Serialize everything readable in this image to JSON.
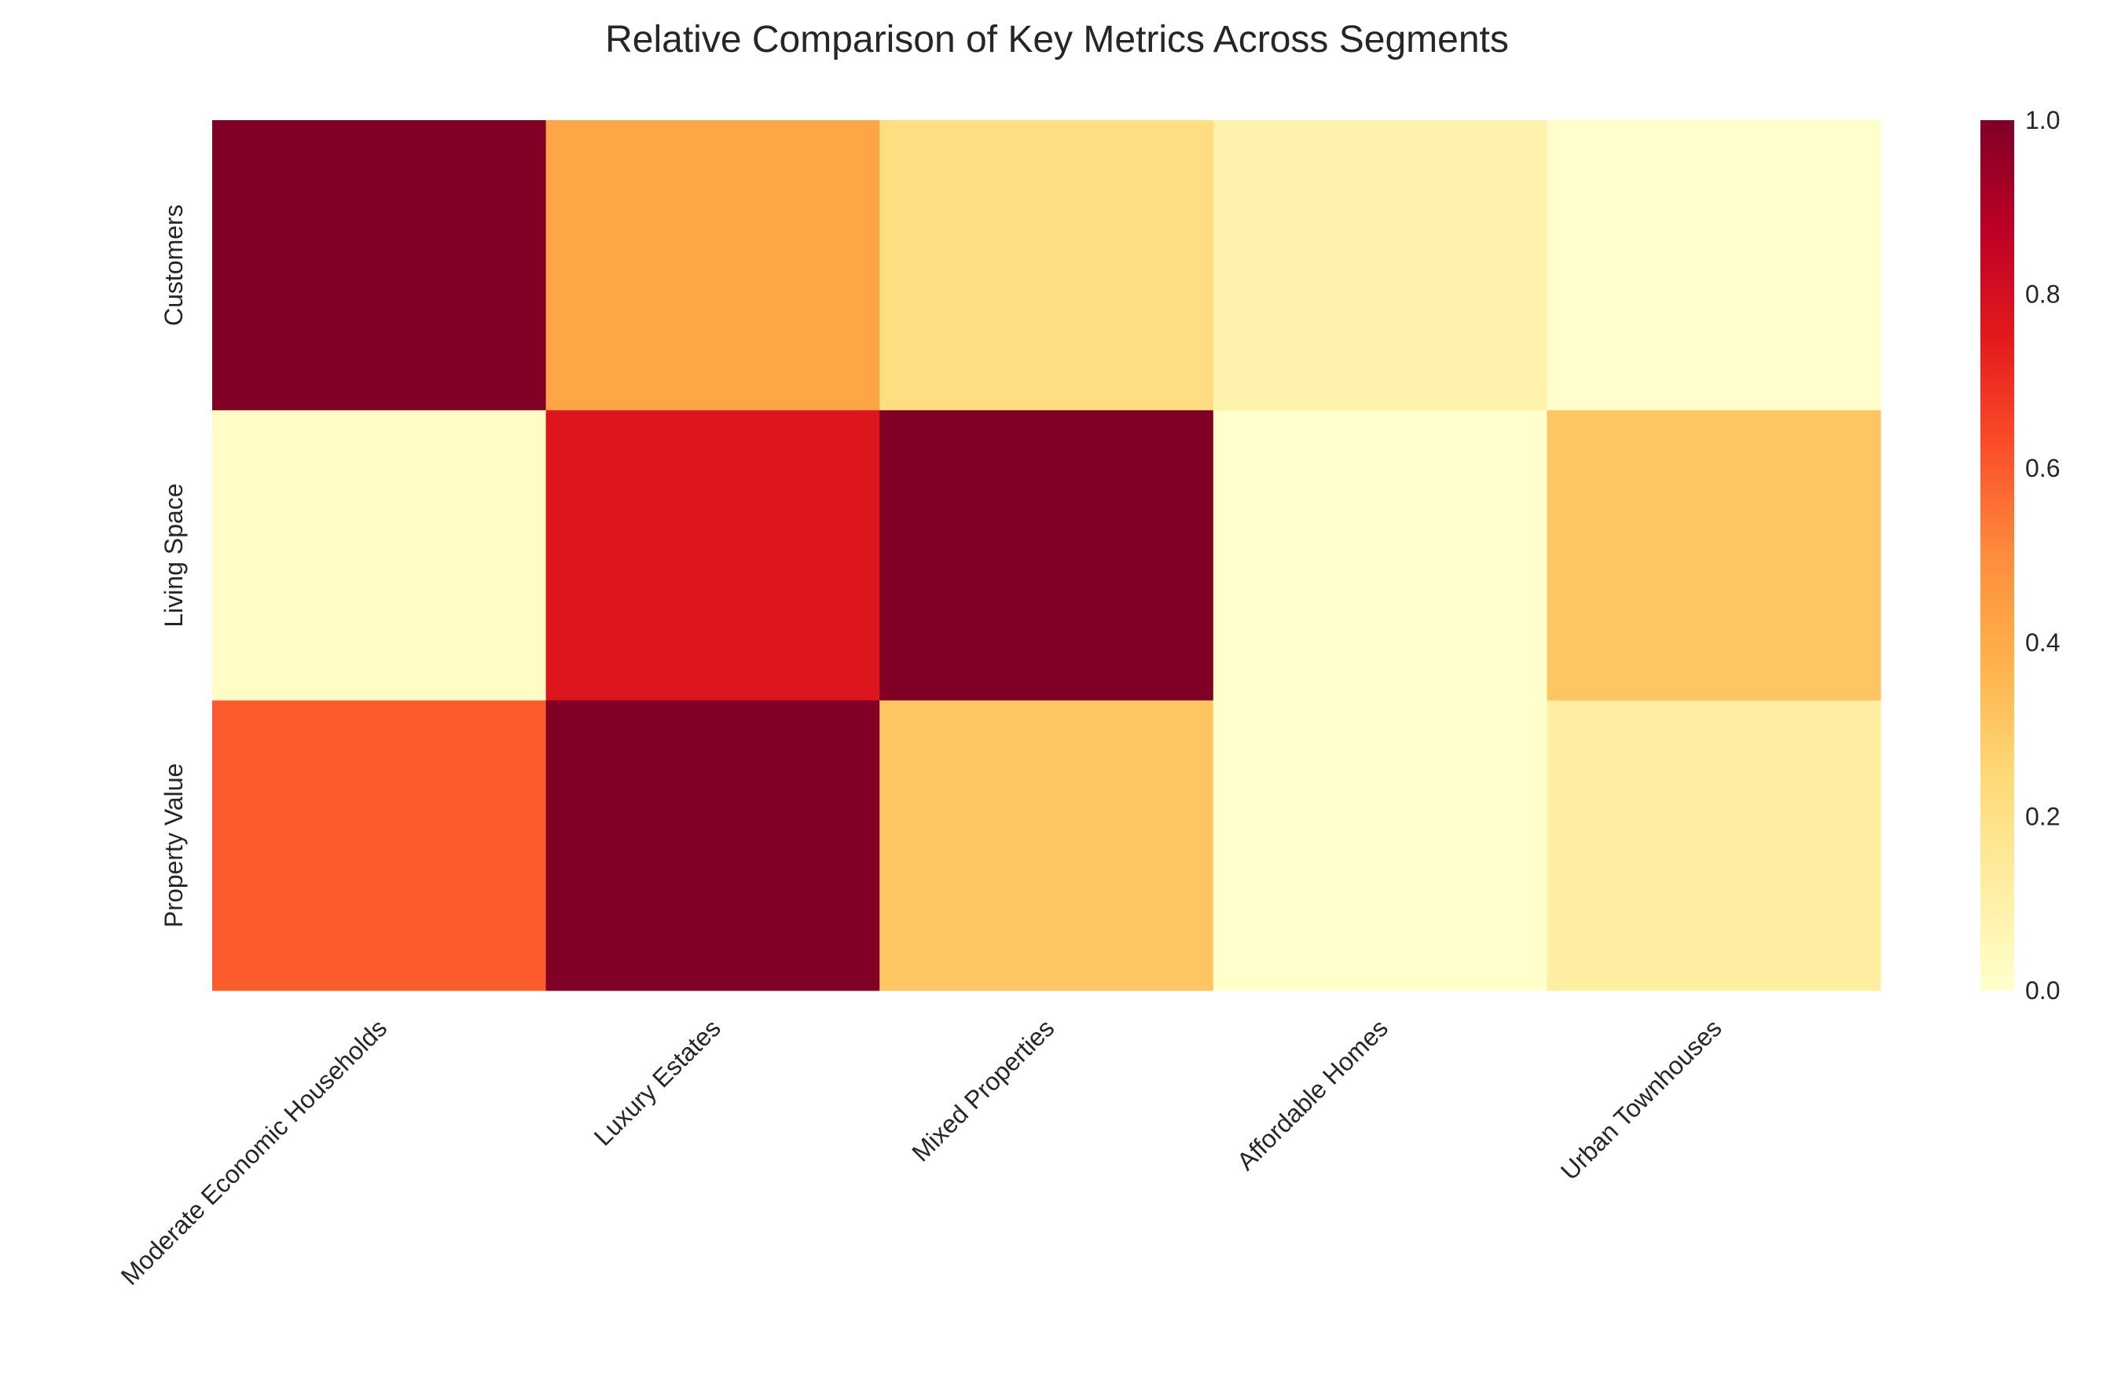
{
  "chart_data": {
    "type": "heatmap",
    "title": "Relative Comparison of Key Metrics Across Segments",
    "xlabel": "",
    "ylabel": "",
    "x_categories": [
      "Moderate Economic Households",
      "Luxury Estates",
      "Mixed Properties",
      "Affordable Homes",
      "Urban Townhouses"
    ],
    "y_categories": [
      "Customers",
      "Living Space",
      "Property Value"
    ],
    "values": [
      [
        1.0,
        0.42,
        0.22,
        0.09,
        0.0
      ],
      [
        0.02,
        0.77,
        1.0,
        0.0,
        0.31
      ],
      [
        0.6,
        1.0,
        0.31,
        0.0,
        0.12
      ]
    ],
    "colormap": "YlOrRd",
    "vmin": 0.0,
    "vmax": 1.0,
    "colorbar_ticks": [
      "0.0",
      "0.2",
      "0.4",
      "0.6",
      "0.8",
      "1.0"
    ],
    "grid": false,
    "legend": "colorbar-right"
  }
}
